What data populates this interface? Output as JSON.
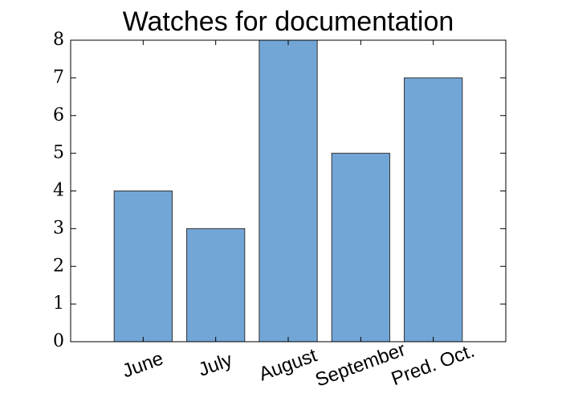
{
  "chart_data": {
    "type": "bar",
    "title": "Watches for documentation",
    "categories": [
      "June",
      "July",
      "August",
      "September",
      "Pred. Oct."
    ],
    "values": [
      4,
      3,
      8,
      5,
      7
    ],
    "color": "#72a6d6",
    "ylim": [
      0,
      8
    ],
    "yticks": [
      0,
      1,
      2,
      3,
      4,
      5,
      6,
      7,
      8
    ]
  }
}
